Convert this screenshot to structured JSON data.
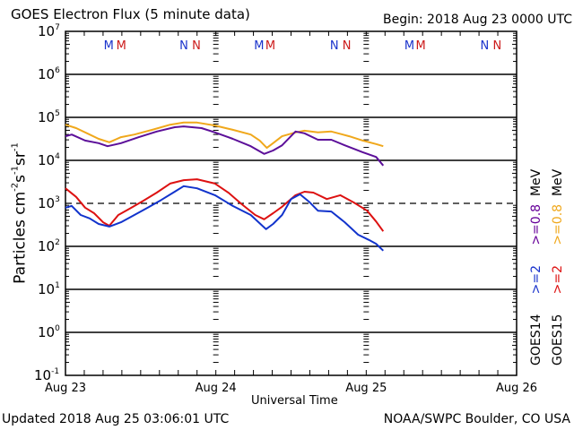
{
  "header": {
    "title": "GOES Electron Flux (5 minute data)",
    "begin": "Begin: 2018 Aug 23 0000 UTC"
  },
  "footer": {
    "updated": "Updated 2018 Aug 25 03:06:01 UTC",
    "credit": "NOAA/SWPC Boulder, CO USA"
  },
  "chart_data": {
    "type": "line",
    "title": "GOES Electron Flux (5 minute data)",
    "xlabel": "Universal Time",
    "ylabel": {
      "base": "Particles cm",
      "exp1": "-2",
      "mid": "s",
      "exp2": "-1",
      "mid2": "sr",
      "exp3": "-1"
    },
    "xlim_hours": [
      0,
      72
    ],
    "ylim_log10": [
      -1,
      7
    ],
    "y_scale": "log",
    "xticks": [
      {
        "hours": 0,
        "label": "Aug 23"
      },
      {
        "hours": 24,
        "label": "Aug 24"
      },
      {
        "hours": 48,
        "label": "Aug 25"
      },
      {
        "hours": 72,
        "label": "Aug 26"
      }
    ],
    "yticks": [
      {
        "exp": 7,
        "label": "10",
        "sup": "7"
      },
      {
        "exp": 6,
        "label": "10",
        "sup": "6"
      },
      {
        "exp": 5,
        "label": "10",
        "sup": "5"
      },
      {
        "exp": 4,
        "label": "10",
        "sup": "4"
      },
      {
        "exp": 3,
        "label": "10",
        "sup": "3"
      },
      {
        "exp": 2,
        "label": "10",
        "sup": "2"
      },
      {
        "exp": 1,
        "label": "10",
        "sup": "1"
      },
      {
        "exp": 0,
        "label": "10",
        "sup": "0"
      },
      {
        "exp": -1,
        "label": "10",
        "sup": "-1"
      }
    ],
    "threshold_log10": 3,
    "grid": true,
    "markers": [
      {
        "hours": 6.9,
        "label": "M",
        "color": "#1a33cc"
      },
      {
        "hours": 8.9,
        "label": "M",
        "color": "#cc1a1a"
      },
      {
        "hours": 18.9,
        "label": "N",
        "color": "#1a33cc"
      },
      {
        "hours": 20.9,
        "label": "N",
        "color": "#cc1a1a"
      },
      {
        "hours": 30.9,
        "label": "M",
        "color": "#1a33cc"
      },
      {
        "hours": 32.7,
        "label": "M",
        "color": "#cc1a1a"
      },
      {
        "hours": 42.9,
        "label": "N",
        "color": "#1a33cc"
      },
      {
        "hours": 44.9,
        "label": "N",
        "color": "#cc1a1a"
      },
      {
        "hours": 54.9,
        "label": "M",
        "color": "#1a33cc"
      },
      {
        "hours": 56.7,
        "label": "M",
        "color": "#cc1a1a"
      },
      {
        "hours": 66.9,
        "label": "N",
        "color": "#1a33cc"
      },
      {
        "hours": 68.9,
        "label": "N",
        "color": "#cc1a1a"
      }
    ],
    "legend": [
      {
        "label": "GOES14",
        "entries": [
          {
            "text": ">=2",
            "color": "#1a33cc"
          },
          {
            "text": ">=0.8",
            "color": "#660099"
          }
        ],
        "unit": "MeV"
      },
      {
        "label": "GOES15",
        "entries": [
          {
            "text": ">=2",
            "color": "#dd1111"
          },
          {
            "text": ">=0.8",
            "color": "#f0a81c"
          }
        ],
        "unit": "MeV"
      }
    ],
    "series": [
      {
        "name": "GOES15 >=0.8 MeV",
        "color": "#f0a81c",
        "x": [
          0,
          1.71,
          3.86,
          5.29,
          7,
          8.86,
          11,
          13.86,
          16.71,
          18.86,
          21,
          23.86,
          26.71,
          29.57,
          31,
          32.14,
          33.14,
          34.57,
          36.71,
          38.14,
          40.29,
          42.43,
          45.29,
          47.43,
          49.57,
          50.71
        ],
        "log10_y": [
          4.83,
          4.75,
          4.6,
          4.5,
          4.42,
          4.54,
          4.6,
          4.71,
          4.83,
          4.88,
          4.88,
          4.81,
          4.71,
          4.6,
          4.46,
          4.29,
          4.4,
          4.56,
          4.65,
          4.69,
          4.65,
          4.67,
          4.56,
          4.46,
          4.38,
          4.33
        ]
      },
      {
        "name": "GOES14 >=0.8 MeV",
        "color": "#5c0f99",
        "x": [
          0,
          1,
          3.14,
          5.29,
          6.71,
          8.86,
          11.71,
          14.57,
          17.43,
          18.86,
          21.71,
          23.86,
          26.71,
          29.57,
          31.71,
          33.14,
          34.57,
          36.71,
          38.14,
          40.29,
          42.43,
          44.57,
          47.43,
          49.57,
          50.71
        ],
        "log10_y": [
          4.56,
          4.6,
          4.46,
          4.4,
          4.33,
          4.4,
          4.54,
          4.67,
          4.77,
          4.79,
          4.75,
          4.65,
          4.5,
          4.33,
          4.15,
          4.23,
          4.35,
          4.67,
          4.63,
          4.48,
          4.48,
          4.35,
          4.19,
          4.08,
          3.88
        ]
      },
      {
        "name": "GOES15 >=2 MeV",
        "color": "#dd1111",
        "x": [
          0,
          1.71,
          3.14,
          4.57,
          6,
          7,
          8.43,
          10.29,
          12.43,
          14.57,
          16.71,
          18.86,
          21,
          23.86,
          26,
          28.14,
          30.29,
          31.71,
          33.14,
          34.57,
          36.71,
          38.14,
          39.57,
          41.71,
          43.86,
          46,
          48.14,
          49.57,
          50.71
        ],
        "log10_y": [
          3.35,
          3.15,
          2.9,
          2.77,
          2.56,
          2.48,
          2.73,
          2.88,
          3.06,
          3.25,
          3.46,
          3.54,
          3.56,
          3.46,
          3.25,
          2.98,
          2.73,
          2.63,
          2.77,
          2.92,
          3.19,
          3.27,
          3.25,
          3.1,
          3.19,
          3.02,
          2.83,
          2.58,
          2.35
        ]
      },
      {
        "name": "GOES14 >=2 MeV",
        "color": "#1133cc",
        "x": [
          0,
          1,
          2.43,
          3.86,
          5.29,
          7,
          8.86,
          11,
          13.14,
          15.29,
          17.43,
          18.86,
          21,
          23.86,
          26.71,
          29.57,
          32,
          33.14,
          34.57,
          36,
          37.43,
          38.86,
          40.29,
          42.43,
          44.57,
          46.71,
          48.43,
          49.57,
          50.71
        ],
        "log10_y": [
          2.9,
          2.94,
          2.73,
          2.65,
          2.52,
          2.46,
          2.56,
          2.73,
          2.9,
          3.08,
          3.27,
          3.4,
          3.35,
          3.19,
          2.94,
          2.73,
          2.4,
          2.52,
          2.73,
          3.1,
          3.21,
          3.04,
          2.83,
          2.81,
          2.56,
          2.27,
          2.15,
          2.06,
          1.9
        ]
      }
    ]
  }
}
